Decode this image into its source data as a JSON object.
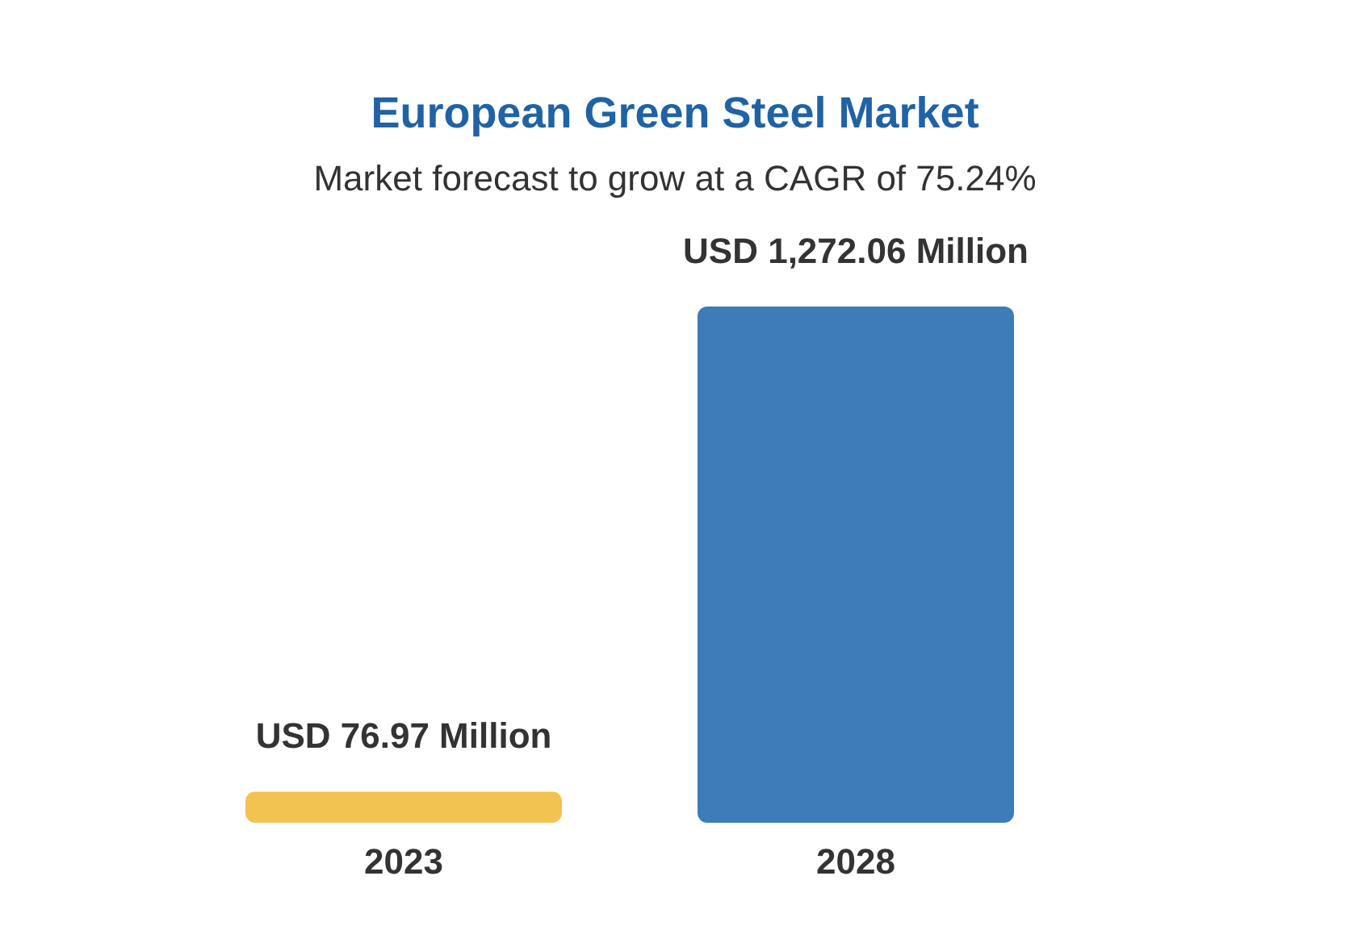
{
  "chart_data": {
    "type": "bar",
    "title": "European Green Steel Market",
    "subtitle": "Market forecast to grow at a CAGR of 75.24%",
    "categories": [
      "2023",
      "2028"
    ],
    "values": [
      76.97,
      1272.06
    ],
    "colors": [
      "#f3c352",
      "#3d7cb6"
    ],
    "value_labels": [
      "USD 76.97 Million",
      "USD 1,272.06 Million"
    ]
  }
}
